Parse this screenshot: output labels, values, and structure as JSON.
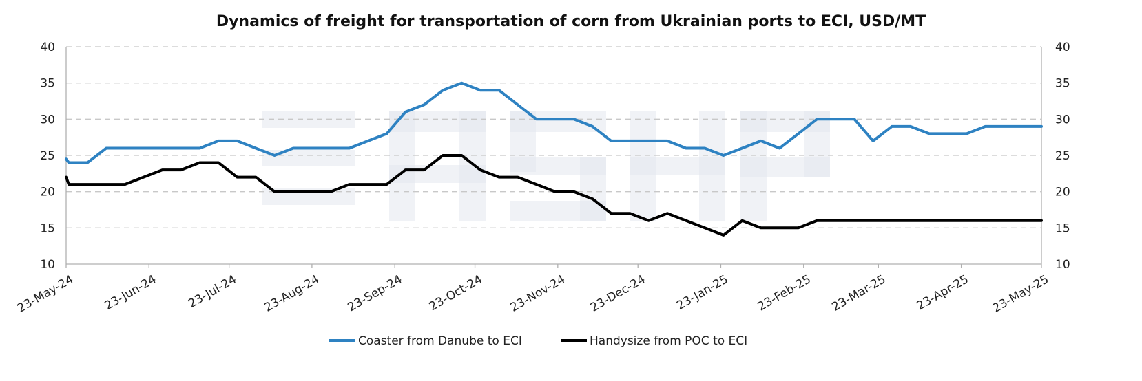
{
  "chart_data": {
    "type": "line",
    "title": "Dynamics of freight for transportation of corn from Ukrainian ports to ECI, USD/MT",
    "xlabel": "",
    "ylabel": "",
    "ylim": [
      10,
      40
    ],
    "y_ticks": [
      "10",
      "15",
      "20",
      "25",
      "30",
      "35",
      "40"
    ],
    "secondary_y_ticks": [
      "10",
      "15",
      "20",
      "25",
      "30",
      "35",
      "40"
    ],
    "x_tick_labels": [
      "23-May-24",
      "23-Jun-24",
      "23-Jul-24",
      "23-Aug-24",
      "23-Sep-24",
      "23-Oct-24",
      "23-Nov-24",
      "23-Dec-24",
      "23-Jan-25",
      "23-Feb-25",
      "23-Mar-25",
      "23-Apr-25",
      "23-May-25"
    ],
    "grid": true,
    "legend_position": "bottom",
    "x": [
      "2024-05-23",
      "2024-05-24",
      "2024-05-31",
      "2024-06-07",
      "2024-06-14",
      "2024-06-21",
      "2024-06-28",
      "2024-07-05",
      "2024-07-12",
      "2024-07-19",
      "2024-07-26",
      "2024-08-02",
      "2024-08-09",
      "2024-08-16",
      "2024-08-23",
      "2024-08-30",
      "2024-09-06",
      "2024-09-13",
      "2024-09-20",
      "2024-09-27",
      "2024-10-04",
      "2024-10-11",
      "2024-10-18",
      "2024-10-25",
      "2024-11-01",
      "2024-11-08",
      "2024-11-15",
      "2024-11-22",
      "2024-11-29",
      "2024-12-06",
      "2024-12-13",
      "2024-12-20",
      "2024-12-27",
      "2025-01-03",
      "2025-01-10",
      "2025-01-17",
      "2025-01-24",
      "2025-01-31",
      "2025-02-07",
      "2025-02-14",
      "2025-02-21",
      "2025-02-28",
      "2025-03-07",
      "2025-03-14",
      "2025-03-21",
      "2025-03-28",
      "2025-04-04",
      "2025-04-11",
      "2025-04-18",
      "2025-04-25",
      "2025-05-02",
      "2025-05-09",
      "2025-05-16",
      "2025-05-23"
    ],
    "series": [
      {
        "name": "Coaster from Danube to ECI",
        "color": "#2e82c2",
        "values": [
          24.5,
          24,
          24,
          26,
          26,
          26,
          26,
          26,
          26,
          27,
          27,
          26,
          25,
          26,
          26,
          26,
          26,
          27,
          28,
          31,
          32,
          34,
          35,
          34,
          34,
          32,
          30,
          30,
          30,
          29,
          27,
          27,
          27,
          27,
          26,
          26,
          25,
          26,
          27,
          26,
          28,
          30,
          30,
          30,
          27,
          29,
          29,
          28,
          28,
          28,
          29,
          29,
          29,
          29
        ]
      },
      {
        "name": "Handysize from POC to ECI",
        "color": "#000000",
        "values": [
          22,
          21,
          21,
          21,
          21,
          22,
          23,
          23,
          24,
          24,
          22,
          22,
          20,
          20,
          20,
          20,
          21,
          21,
          21,
          23,
          23,
          25,
          25,
          23,
          22,
          22,
          21,
          20,
          20,
          19,
          17,
          17,
          16,
          17,
          16,
          15,
          14,
          16,
          15,
          15,
          15,
          16,
          16,
          16,
          16,
          16,
          16,
          16,
          16,
          16,
          16,
          16,
          16,
          16
        ]
      }
    ]
  }
}
